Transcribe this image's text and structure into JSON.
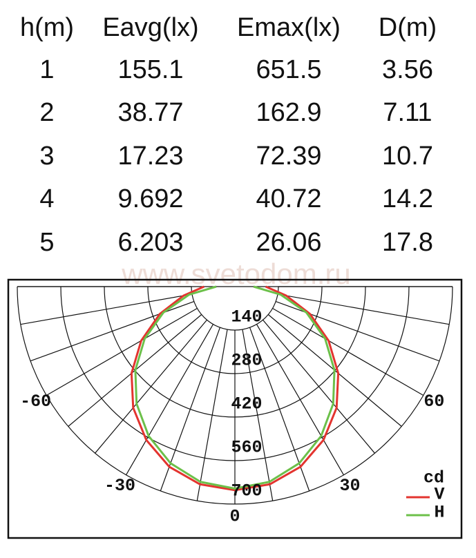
{
  "table": {
    "header": [
      "h(m)",
      "Eavg(lx)",
      "Emax(lx)",
      "D(m)"
    ],
    "rows": [
      [
        "1",
        "155.1",
        "651.5",
        "3.56"
      ],
      [
        "2",
        "38.77",
        "162.9",
        "7.11"
      ],
      [
        "3",
        "17.23",
        "72.39",
        "10.7"
      ],
      [
        "4",
        "9.692",
        "40.72",
        "14.2"
      ],
      [
        "5",
        "6.203",
        "26.06",
        "17.8"
      ]
    ]
  },
  "watermark": "www.svetodom.ru",
  "chart_data": {
    "type": "polar",
    "unit_label": "cd",
    "theta": [
      -90,
      -80,
      -70,
      -60,
      -50,
      -40,
      -30,
      -20,
      -10,
      0,
      10,
      20,
      30,
      40,
      50,
      60,
      70,
      80,
      90
    ],
    "rlim": [
      0,
      700
    ],
    "rticks": [
      140,
      280,
      420,
      560,
      700
    ],
    "thetaticks": [
      -60,
      -30,
      0,
      30,
      60
    ],
    "series": [
      {
        "name": "V",
        "color": "#e3342f",
        "values": [
          99,
          168,
          257,
          348,
          434,
          509,
          570,
          617,
          646,
          655,
          646,
          617,
          570,
          509,
          434,
          348,
          257,
          168,
          99
        ]
      },
      {
        "name": "H",
        "color": "#6cc04a",
        "values": [
          60,
          150,
          245,
          335,
          418,
          492,
          555,
          605,
          638,
          650,
          638,
          605,
          555,
          492,
          418,
          335,
          245,
          150,
          60
        ]
      }
    ]
  }
}
